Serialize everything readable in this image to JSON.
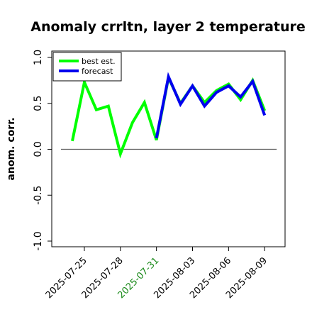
{
  "chart_data": {
    "type": "line",
    "title": "Anomaly crrltn, layer 2 temperature",
    "ylabel": "anom. corr.",
    "xlabel": "",
    "ylim": [
      -1.0,
      1.0
    ],
    "yticks": [
      -1.0,
      -0.5,
      0.0,
      0.5,
      1.0
    ],
    "ytick_labels": [
      "-1.0",
      "-0.5",
      "0.0",
      "0.5",
      "1.0"
    ],
    "xticks": [
      "2025-07-25",
      "2025-07-28",
      "2025-07-31",
      "2025-08-03",
      "2025-08-06",
      "2025-08-09"
    ],
    "xtick_highlight": "2025-07-31",
    "xtick_colors": {
      "normal": "#000000",
      "highlight": "#1a8a1a"
    },
    "reference_line": 0.0,
    "grid": false,
    "legend_position": "top-left",
    "x": [
      "2025-07-24",
      "2025-07-25",
      "2025-07-26",
      "2025-07-27",
      "2025-07-28",
      "2025-07-29",
      "2025-07-30",
      "2025-07-31",
      "2025-08-01",
      "2025-08-02",
      "2025-08-03",
      "2025-08-04",
      "2025-08-05",
      "2025-08-06",
      "2025-08-07",
      "2025-08-08",
      "2025-08-09"
    ],
    "series": [
      {
        "name": "best est.",
        "color": "#00ff00",
        "values": [
          0.09,
          0.73,
          0.43,
          0.47,
          -0.05,
          0.29,
          0.51,
          0.1,
          0.78,
          0.5,
          0.69,
          0.51,
          0.64,
          0.71,
          0.54,
          0.75,
          0.42
        ]
      },
      {
        "name": "forecast",
        "color": "#0000ee",
        "values": [
          null,
          null,
          null,
          null,
          null,
          null,
          null,
          0.12,
          0.79,
          0.49,
          0.69,
          0.47,
          0.62,
          0.69,
          0.57,
          0.74,
          0.37
        ]
      }
    ]
  }
}
